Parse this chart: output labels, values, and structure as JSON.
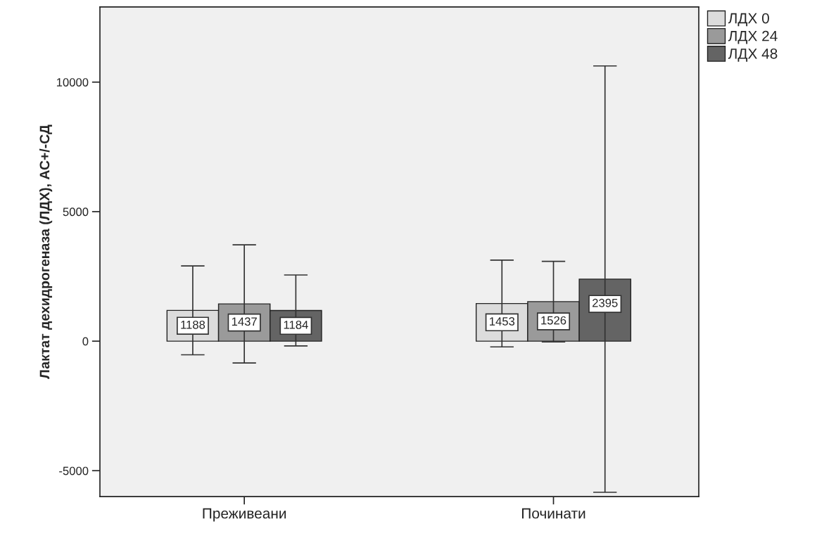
{
  "chart_data": {
    "type": "bar",
    "ylabel": "Лактат дехидрогеназа (ЛДХ), АС+/-СД",
    "categories": [
      "Преживеани",
      "Починати"
    ],
    "series": [
      {
        "name": "ЛДХ 0",
        "color": "#dcdcdc",
        "values": [
          1188,
          1453
        ],
        "errors": [
          1715,
          1675
        ]
      },
      {
        "name": "ЛДХ 24",
        "color": "#9a9a9a",
        "values": [
          1437,
          1526
        ],
        "errors": [
          2280,
          1555
        ]
      },
      {
        "name": "ЛДХ 48",
        "color": "#646464",
        "values": [
          1184,
          2395
        ],
        "errors": [
          1370,
          8230
        ]
      }
    ],
    "ylim": [
      -6000,
      12900
    ],
    "yticks": [
      -5000,
      0,
      5000,
      10000
    ],
    "data_labels": true,
    "grid": false,
    "legend": "top right"
  }
}
